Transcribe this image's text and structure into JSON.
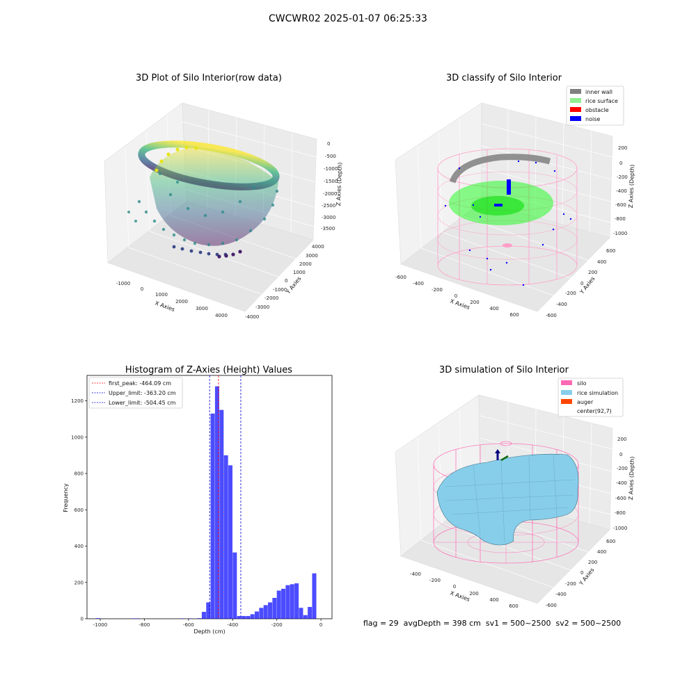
{
  "suptitle": "CWCWR02 2025-01-07 06:25:33",
  "colors": {
    "histogram": "#0000ff",
    "first_peak_line": "#ff0000",
    "limit_line": "#0000cc",
    "inner_wall": "#808080",
    "rice_surface": "#90ee90",
    "obstacle": "#ff0000",
    "noise": "#0000ff",
    "silo": "#ff69b4",
    "rice_simulation": "#87ceeb",
    "auger": "#ff4500"
  },
  "panel1": {
    "title": "3D Plot of Silo Interior(row data)",
    "x_label": "X Axies",
    "y_label": "Y Axies",
    "z_label": "Z Axies (Depth)",
    "x_ticks": [
      "-1000",
      "0",
      "1000",
      "2000",
      "3000",
      "4000"
    ],
    "y_ticks": [
      "4000",
      "3000",
      "2000",
      "1000",
      "0",
      "-1000",
      "-2000",
      "-3000",
      "-4000"
    ],
    "z_ticks": [
      "0",
      "-500",
      "-1000",
      "-1500",
      "-2000",
      "-2500",
      "-3000",
      "-3500"
    ]
  },
  "panel2": {
    "title": "3D classify of Silo Interior",
    "x_label": "X Axies",
    "y_label": "Y Axies",
    "z_label": "Z Axies (Depth)",
    "x_ticks": [
      "-600",
      "-400",
      "-200",
      "0",
      "200",
      "400",
      "600"
    ],
    "y_ticks": [
      "600",
      "400",
      "200",
      "0",
      "-200",
      "-400",
      "-600"
    ],
    "z_ticks": [
      "200",
      "0",
      "-200",
      "-400",
      "-600",
      "-800",
      "-1000"
    ],
    "legend": [
      "inner wall",
      "rice surface",
      "obstacle",
      "noise"
    ]
  },
  "panel4": {
    "title": "3D simulation of Silo Interior",
    "x_label": "X Axies",
    "y_label": "Y Axies",
    "z_label": "Z Axies (Depth)",
    "x_ticks": [
      "-400",
      "-200",
      "0",
      "200",
      "400",
      "600"
    ],
    "y_ticks": [
      "600",
      "400",
      "200",
      "0",
      "-200",
      "-400",
      "-600"
    ],
    "z_ticks": [
      "200",
      "0",
      "-200",
      "-400",
      "-600",
      "-800",
      "-1000"
    ],
    "legend": [
      "silo",
      "rice simulation",
      "auger",
      "center(92,7)"
    ]
  },
  "chart_data": [
    {
      "type": "bar",
      "title": "Histogram of Z-Axies (Height) Values",
      "xlabel": "Depth (cm)",
      "ylabel": "Frequency",
      "xlim": [
        -1060,
        50
      ],
      "ylim": [
        0,
        1340
      ],
      "x_ticks": [
        -1000,
        -800,
        -600,
        -400,
        -200,
        0
      ],
      "y_ticks": [
        0,
        200,
        400,
        600,
        800,
        1000,
        1200
      ],
      "bin_width": 20,
      "bins": [
        {
          "x": -1010,
          "y": 3
        },
        {
          "x": -850,
          "y": 2
        },
        {
          "x": -830,
          "y": 2
        },
        {
          "x": -630,
          "y": 2
        },
        {
          "x": -590,
          "y": 2
        },
        {
          "x": -550,
          "y": 3
        },
        {
          "x": -530,
          "y": 38
        },
        {
          "x": -510,
          "y": 90
        },
        {
          "x": -490,
          "y": 1130
        },
        {
          "x": -470,
          "y": 1280
        },
        {
          "x": -450,
          "y": 1150
        },
        {
          "x": -430,
          "y": 900
        },
        {
          "x": -410,
          "y": 845
        },
        {
          "x": -390,
          "y": 365
        },
        {
          "x": -370,
          "y": 15
        },
        {
          "x": -350,
          "y": 15
        },
        {
          "x": -330,
          "y": 15
        },
        {
          "x": -310,
          "y": 25
        },
        {
          "x": -290,
          "y": 40
        },
        {
          "x": -270,
          "y": 60
        },
        {
          "x": -250,
          "y": 75
        },
        {
          "x": -230,
          "y": 90
        },
        {
          "x": -210,
          "y": 115
        },
        {
          "x": -190,
          "y": 155
        },
        {
          "x": -170,
          "y": 165
        },
        {
          "x": -150,
          "y": 185
        },
        {
          "x": -130,
          "y": 190
        },
        {
          "x": -110,
          "y": 195
        },
        {
          "x": -90,
          "y": 60
        },
        {
          "x": -70,
          "y": 20
        },
        {
          "x": -50,
          "y": 65
        },
        {
          "x": -30,
          "y": 250
        }
      ],
      "lines": [
        {
          "label": "first_peak: -464.09 cm",
          "x": -464.09,
          "color": "#ff0000"
        },
        {
          "label": "Upper_limit: -363.20 cm",
          "x": -363.2,
          "color": "#0000cc"
        },
        {
          "label": "Lower_limit: -504.45 cm",
          "x": -504.45,
          "color": "#0000cc"
        }
      ],
      "legend_position": "top-left"
    }
  ],
  "footer": {
    "text": "flag = 29  avgDepth = 398 cm  sv1 = 500~2500  sv2 = 500~2500"
  }
}
